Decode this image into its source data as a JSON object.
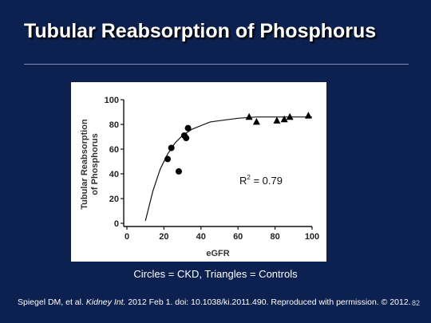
{
  "slide": {
    "title": "Tubular Reabsorption of Phosphorus",
    "caption": "Circles = CKD, Triangles = Controls",
    "citation_pre": "Spiegel DM, et al. ",
    "citation_journal": "Kidney Int.",
    "citation_post": " 2012 Feb 1. doi: 10.1038/ki.2011.490. Reproduced with permission. © 2012.",
    "slide_number": "82",
    "colors": {
      "background": "#0d2150",
      "text": "#ffffff",
      "rule": "#7f8fb5"
    }
  },
  "chart_data": {
    "type": "scatter",
    "xlabel": "eGFR",
    "ylabel_lines": [
      "Tubular Reabsorption",
      "of Phosphorus"
    ],
    "xlim": [
      0,
      100
    ],
    "ylim": [
      0,
      100
    ],
    "xticks": [
      0,
      20,
      40,
      60,
      80,
      100
    ],
    "yticks": [
      0,
      20,
      40,
      60,
      80,
      100
    ],
    "grid": false,
    "annotation": {
      "base": "R",
      "sup": "2",
      "rest": " = 0.79"
    },
    "series": [
      {
        "marker": "circle",
        "points": [
          [
            22,
            52
          ],
          [
            24,
            61
          ],
          [
            28,
            42
          ],
          [
            31,
            71
          ],
          [
            32,
            69
          ],
          [
            33,
            77
          ]
        ]
      },
      {
        "marker": "triangle",
        "points": [
          [
            66,
            86
          ],
          [
            70,
            82
          ],
          [
            81,
            83
          ],
          [
            85,
            84
          ],
          [
            88,
            86
          ],
          [
            98,
            87
          ]
        ]
      }
    ],
    "fit_curve": [
      [
        10,
        2
      ],
      [
        14,
        26
      ],
      [
        18,
        44
      ],
      [
        22,
        56
      ],
      [
        26,
        65
      ],
      [
        30,
        71
      ],
      [
        35,
        76
      ],
      [
        40,
        79
      ],
      [
        45,
        82
      ],
      [
        50,
        83
      ],
      [
        55,
        84
      ],
      [
        60,
        85
      ],
      [
        70,
        86
      ],
      [
        80,
        86
      ],
      [
        90,
        86
      ],
      [
        100,
        86
      ]
    ]
  }
}
